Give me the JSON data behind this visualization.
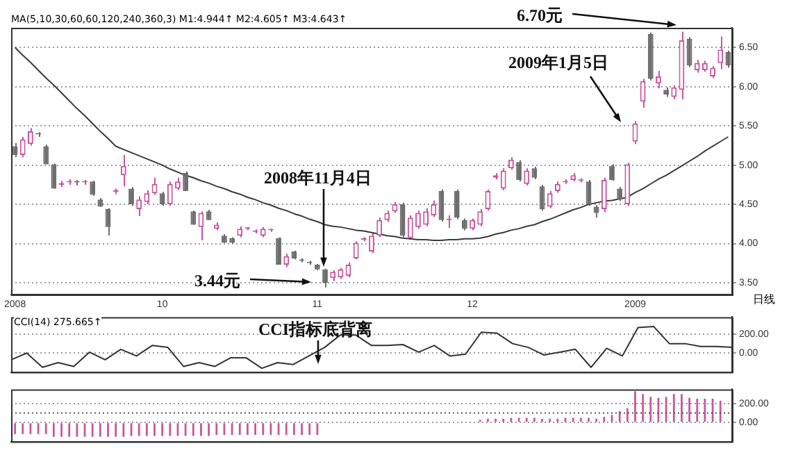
{
  "chart_data": [
    {
      "type": "candlestick",
      "subtitle": "MA(5,10,30,60,60,120,240,360,3) M1:4.944↑ M2:4.605↑ M3:4.643↑",
      "xlabel": "日线",
      "categories": [
        "2008",
        null,
        null,
        null,
        null,
        null,
        null,
        null,
        null,
        null,
        null,
        null,
        null,
        null,
        null,
        null,
        null,
        null,
        null,
        "10",
        null,
        null,
        null,
        null,
        null,
        null,
        null,
        null,
        null,
        null,
        null,
        null,
        null,
        null,
        null,
        null,
        null,
        null,
        null,
        "11",
        null,
        null,
        null,
        null,
        null,
        null,
        null,
        null,
        null,
        null,
        null,
        null,
        null,
        null,
        null,
        null,
        null,
        null,
        null,
        "12",
        null,
        null,
        null,
        null,
        null,
        null,
        null,
        null,
        null,
        null,
        null,
        null,
        null,
        null,
        null,
        null,
        null,
        null,
        null,
        null,
        "2009",
        null,
        null,
        null,
        null,
        null,
        null,
        null,
        null,
        null,
        null,
        null,
        null
      ],
      "ohlc": [
        [
          5.24,
          5.28,
          5.1,
          5.13
        ],
        [
          5.13,
          5.36,
          5.1,
          5.33
        ],
        [
          5.27,
          5.47,
          5.25,
          5.43
        ],
        [
          5.4,
          5.42,
          5.36,
          5.39
        ],
        [
          5.24,
          5.26,
          5.01,
          5.01
        ],
        [
          5.01,
          5.02,
          4.7,
          4.7
        ],
        [
          4.75,
          4.8,
          4.72,
          4.77
        ],
        [
          4.78,
          4.82,
          4.75,
          4.79
        ],
        [
          4.79,
          4.81,
          4.74,
          4.78
        ],
        [
          4.78,
          4.81,
          4.75,
          4.78
        ],
        [
          4.79,
          4.8,
          4.61,
          4.62
        ],
        [
          4.56,
          4.58,
          4.47,
          4.47
        ],
        [
          4.44,
          4.45,
          4.1,
          4.21
        ],
        [
          4.66,
          4.7,
          4.63,
          4.67
        ],
        [
          4.87,
          5.13,
          4.73,
          4.99
        ],
        [
          4.7,
          4.72,
          4.48,
          4.5
        ],
        [
          4.44,
          4.6,
          4.35,
          4.56
        ],
        [
          4.53,
          4.68,
          4.5,
          4.64
        ],
        [
          4.64,
          4.84,
          4.62,
          4.76
        ],
        [
          4.64,
          4.66,
          4.48,
          4.5
        ],
        [
          4.5,
          4.79,
          4.48,
          4.76
        ],
        [
          4.7,
          4.84,
          4.68,
          4.79
        ],
        [
          4.9,
          4.92,
          4.67,
          4.67
        ],
        [
          4.41,
          4.42,
          4.24,
          4.24
        ],
        [
          4.21,
          4.41,
          4.04,
          4.39
        ],
        [
          4.41,
          4.43,
          4.3,
          4.3
        ],
        [
          4.19,
          4.27,
          4.17,
          4.24
        ],
        [
          4.1,
          4.12,
          4.01,
          4.01
        ],
        [
          4.07,
          4.08,
          4.0,
          4.01
        ],
        [
          4.1,
          4.22,
          4.08,
          4.19
        ],
        [
          4.19,
          4.21,
          4.17,
          4.19
        ],
        [
          4.15,
          4.18,
          4.13,
          4.15
        ],
        [
          4.1,
          4.21,
          4.08,
          4.19
        ],
        [
          4.17,
          4.19,
          4.15,
          4.17
        ],
        [
          4.07,
          4.08,
          3.73,
          3.73
        ],
        [
          3.73,
          3.87,
          3.7,
          3.84
        ],
        [
          3.9,
          3.91,
          3.8,
          3.81
        ],
        [
          3.79,
          3.81,
          3.76,
          3.78
        ],
        [
          3.76,
          3.78,
          3.73,
          3.75
        ],
        [
          3.73,
          3.74,
          3.66,
          3.67
        ],
        [
          3.67,
          3.68,
          3.44,
          3.5
        ],
        [
          3.56,
          3.66,
          3.52,
          3.64
        ],
        [
          3.57,
          3.69,
          3.55,
          3.67
        ],
        [
          3.59,
          3.76,
          3.57,
          3.73
        ],
        [
          3.81,
          4.03,
          3.8,
          4.01
        ],
        [
          4.05,
          4.08,
          4.03,
          4.06
        ],
        [
          3.9,
          4.13,
          3.88,
          4.1
        ],
        [
          4.1,
          4.33,
          4.08,
          4.3
        ],
        [
          4.3,
          4.42,
          4.28,
          4.39
        ],
        [
          4.41,
          4.53,
          4.39,
          4.5
        ],
        [
          4.5,
          4.52,
          4.08,
          4.1
        ],
        [
          4.07,
          4.36,
          4.05,
          4.33
        ],
        [
          4.21,
          4.42,
          4.19,
          4.39
        ],
        [
          4.24,
          4.45,
          4.22,
          4.41
        ],
        [
          4.36,
          4.55,
          4.34,
          4.5
        ],
        [
          4.67,
          4.69,
          4.28,
          4.3
        ],
        [
          4.3,
          4.36,
          4.2,
          4.3
        ],
        [
          4.67,
          4.69,
          4.31,
          4.33
        ],
        [
          4.3,
          4.32,
          4.17,
          4.19
        ],
        [
          4.19,
          4.32,
          4.17,
          4.3
        ],
        [
          4.24,
          4.44,
          4.22,
          4.41
        ],
        [
          4.44,
          4.69,
          4.42,
          4.67
        ],
        [
          4.84,
          4.9,
          4.82,
          4.87
        ],
        [
          4.7,
          4.96,
          4.68,
          4.93
        ],
        [
          4.96,
          5.1,
          4.94,
          5.07
        ],
        [
          5.04,
          5.06,
          4.79,
          4.81
        ],
        [
          4.76,
          4.96,
          4.74,
          4.93
        ],
        [
          4.96,
          4.98,
          4.82,
          4.84
        ],
        [
          4.73,
          4.75,
          4.42,
          4.44
        ],
        [
          4.47,
          4.67,
          4.45,
          4.64
        ],
        [
          4.67,
          4.79,
          4.65,
          4.76
        ],
        [
          4.78,
          4.82,
          4.76,
          4.79
        ],
        [
          4.81,
          4.9,
          4.79,
          4.87
        ],
        [
          4.8,
          4.83,
          4.78,
          4.8
        ],
        [
          4.79,
          4.81,
          4.48,
          4.5
        ],
        [
          4.47,
          4.49,
          4.33,
          4.39
        ],
        [
          4.44,
          4.84,
          4.4,
          4.81
        ],
        [
          4.99,
          5.01,
          4.8,
          4.81
        ],
        [
          4.7,
          4.72,
          4.54,
          4.56
        ],
        [
          4.5,
          5.03,
          4.48,
          5.01
        ],
        [
          5.3,
          5.56,
          5.27,
          5.53
        ],
        [
          5.81,
          6.1,
          5.73,
          6.07
        ],
        [
          6.67,
          6.69,
          6.08,
          6.1
        ],
        [
          6.04,
          6.2,
          5.98,
          6.13
        ],
        [
          5.96,
          5.99,
          5.87,
          5.9
        ],
        [
          5.87,
          6.02,
          5.84,
          5.99
        ],
        [
          5.96,
          6.7,
          5.84,
          6.59
        ],
        [
          6.61,
          6.63,
          6.25,
          6.27
        ],
        [
          6.21,
          6.34,
          6.18,
          6.3
        ],
        [
          6.21,
          6.33,
          6.19,
          6.3
        ],
        [
          6.13,
          6.26,
          6.11,
          6.24
        ],
        [
          6.3,
          6.64,
          6.22,
          6.47
        ],
        [
          6.44,
          6.46,
          6.24,
          6.27
        ]
      ],
      "colors": [
        "#6e6e6e",
        "#c8559f",
        "#c8559f",
        "#6e6e6e",
        "#6e6e6e",
        "#6e6e6e",
        "#c8559f",
        "#c8559f",
        "#6e6e6e",
        "#c8559f",
        "#6e6e6e",
        "#6e6e6e",
        "#6e6e6e",
        "#c8559f",
        "#c8559f",
        "#6e6e6e",
        "#c8559f",
        "#c8559f",
        "#c8559f",
        "#6e6e6e",
        "#c8559f",
        "#c8559f",
        "#6e6e6e",
        "#6e6e6e",
        "#c8559f",
        "#6e6e6e",
        "#c8559f",
        "#6e6e6e",
        "#6e6e6e",
        "#c8559f",
        "#c8559f",
        "#c8559f",
        "#c8559f",
        "#c8559f",
        "#6e6e6e",
        "#c8559f",
        "#6e6e6e",
        "#6e6e6e",
        "#6e6e6e",
        "#6e6e6e",
        "#6e6e6e",
        "#c8559f",
        "#c8559f",
        "#c8559f",
        "#c8559f",
        "#c8559f",
        "#c8559f",
        "#c8559f",
        "#c8559f",
        "#c8559f",
        "#6e6e6e",
        "#c8559f",
        "#c8559f",
        "#c8559f",
        "#c8559f",
        "#6e6e6e",
        "#c8559f",
        "#6e6e6e",
        "#6e6e6e",
        "#c8559f",
        "#c8559f",
        "#c8559f",
        "#c8559f",
        "#c8559f",
        "#c8559f",
        "#6e6e6e",
        "#c8559f",
        "#6e6e6e",
        "#6e6e6e",
        "#c8559f",
        "#c8559f",
        "#c8559f",
        "#c8559f",
        "#c8559f",
        "#6e6e6e",
        "#6e6e6e",
        "#c8559f",
        "#6e6e6e",
        "#6e6e6e",
        "#c8559f",
        "#c8559f",
        "#c8559f",
        "#6e6e6e",
        "#c8559f",
        "#6e6e6e",
        "#c8559f",
        "#c8559f",
        "#6e6e6e",
        "#c8559f",
        "#c8559f",
        "#c8559f",
        "#c8559f",
        "#6e6e6e"
      ],
      "series": [
        {
          "type": "line",
          "color": "#3a3a3a",
          "values": [
            6.5,
            6.4,
            6.31,
            6.21,
            6.11,
            6.02,
            5.92,
            5.82,
            5.72,
            5.63,
            5.53,
            5.43,
            5.34,
            5.24,
            5.2,
            5.16,
            5.12,
            5.08,
            5.04,
            5.0,
            4.95,
            4.91,
            4.87,
            4.84,
            4.8,
            4.77,
            4.73,
            4.7,
            4.66,
            4.63,
            4.59,
            4.56,
            4.52,
            4.49,
            4.45,
            4.42,
            4.38,
            4.35,
            4.31,
            4.28,
            4.24,
            4.22,
            4.21,
            4.19,
            4.17,
            4.16,
            4.14,
            4.12,
            4.1,
            4.09,
            4.07,
            4.06,
            4.05,
            4.05,
            4.04,
            4.04,
            4.05,
            4.05,
            4.06,
            4.06,
            4.07,
            4.09,
            4.12,
            4.14,
            4.17,
            4.19,
            4.22,
            4.24,
            4.28,
            4.31,
            4.35,
            4.39,
            4.43,
            4.46,
            4.5,
            4.52,
            4.54,
            4.55,
            4.57,
            4.59,
            4.65,
            4.7,
            4.76,
            4.82,
            4.87,
            4.93,
            4.99,
            5.05,
            5.11,
            5.18,
            5.24,
            5.3,
            5.36
          ]
        }
      ],
      "ylim": [
        3.35,
        6.75
      ],
      "yticks": [
        {
          "value": 3.5,
          "label": "3.50"
        },
        {
          "value": 4,
          "label": "4.00"
        },
        {
          "value": 4.5,
          "label": "4.50"
        },
        {
          "value": 5,
          "label": "5.00"
        },
        {
          "value": 5.5,
          "label": "5.50"
        },
        {
          "value": 6,
          "label": "6.00"
        },
        {
          "value": 6.5,
          "label": "6.50"
        }
      ],
      "grid": "y",
      "annotations": [
        "6.70元",
        "2009年1月5日",
        "2008年11月4日",
        "3.44元"
      ]
    },
    {
      "type": "line",
      "title": "CCI(14) 275.665↑",
      "color": "#333333",
      "categories": [
        null,
        null,
        null,
        null,
        null,
        null,
        null,
        null,
        null,
        null,
        null,
        null,
        null,
        null,
        null,
        null,
        null,
        null,
        null,
        null,
        null,
        null,
        null,
        null,
        null,
        null,
        null,
        null,
        null,
        null,
        null,
        null,
        null,
        null,
        null,
        null,
        null,
        null,
        null,
        null,
        null,
        null,
        null,
        null,
        null,
        null,
        null
      ],
      "values": [
        -70,
        0,
        -150,
        -100,
        -140,
        10,
        -70,
        40,
        -30,
        80,
        60,
        -140,
        -100,
        -140,
        -50,
        -50,
        -160,
        -100,
        -120,
        -30,
        60,
        190,
        190,
        80,
        80,
        90,
        10,
        80,
        -30,
        -10,
        220,
        210,
        100,
        60,
        -20,
        10,
        40,
        -150,
        50,
        -30,
        270,
        280,
        100,
        100,
        70,
        70,
        60
      ],
      "ylim": [
        -200,
        380
      ],
      "yticks": [
        {
          "value": 0,
          "label": "0.00"
        },
        {
          "value": 200,
          "label": "200.00"
        }
      ],
      "grid": "y",
      "tick_labels": "y",
      "annotations": [
        "CCI指标底背离"
      ]
    },
    {
      "type": "bar",
      "color": "#c8559f",
      "categories": [
        null,
        null,
        null,
        null,
        null,
        null,
        null,
        null,
        null,
        null,
        null,
        null,
        null,
        null,
        null,
        null,
        null,
        null,
        null,
        null,
        null,
        null,
        null,
        null,
        null,
        null,
        null,
        null,
        null,
        null,
        null,
        null,
        null,
        null,
        null,
        null,
        null,
        null,
        null,
        null,
        null,
        null,
        null,
        null,
        null,
        null,
        null,
        null,
        null,
        null,
        null,
        null,
        null,
        null,
        null,
        null,
        null,
        null,
        null,
        null,
        null,
        null,
        null,
        null,
        null,
        null,
        null,
        null,
        null,
        null,
        null,
        null,
        null,
        null,
        null,
        null,
        null,
        null,
        null,
        null,
        null,
        null,
        null,
        null,
        null,
        null,
        null,
        null,
        null,
        null,
        null,
        null,
        null
      ],
      "values": [
        -120,
        -120,
        -120,
        -120,
        -120,
        -150,
        -150,
        -150,
        -150,
        -150,
        -150,
        -150,
        -150,
        -150,
        -150,
        -140,
        -140,
        -140,
        -140,
        -140,
        -140,
        -140,
        -140,
        -140,
        -140,
        -140,
        -130,
        -130,
        -130,
        -130,
        -130,
        -130,
        -130,
        -130,
        -130,
        -130,
        -130,
        -130,
        -130,
        -130,
        null,
        null,
        null,
        null,
        null,
        null,
        null,
        null,
        null,
        null,
        null,
        null,
        null,
        null,
        null,
        null,
        null,
        null,
        null,
        null,
        30,
        40,
        40,
        40,
        50,
        50,
        50,
        50,
        40,
        40,
        40,
        50,
        50,
        50,
        50,
        40,
        60,
        80,
        120,
        150,
        330,
        300,
        270,
        260,
        270,
        300,
        300,
        260,
        250,
        250,
        250,
        230,
        null
      ],
      "ylim": [
        -200,
        350
      ],
      "yticks": [
        {
          "value": 0,
          "label": "0.00"
        },
        {
          "value": 200,
          "label": "200.00"
        }
      ],
      "grid": "y",
      "tick_labels": "y",
      "ref_lines": [
        {
          "axis": "y",
          "value": 100,
          "line_style": "dotted",
          "color": "#555555"
        }
      ]
    }
  ]
}
